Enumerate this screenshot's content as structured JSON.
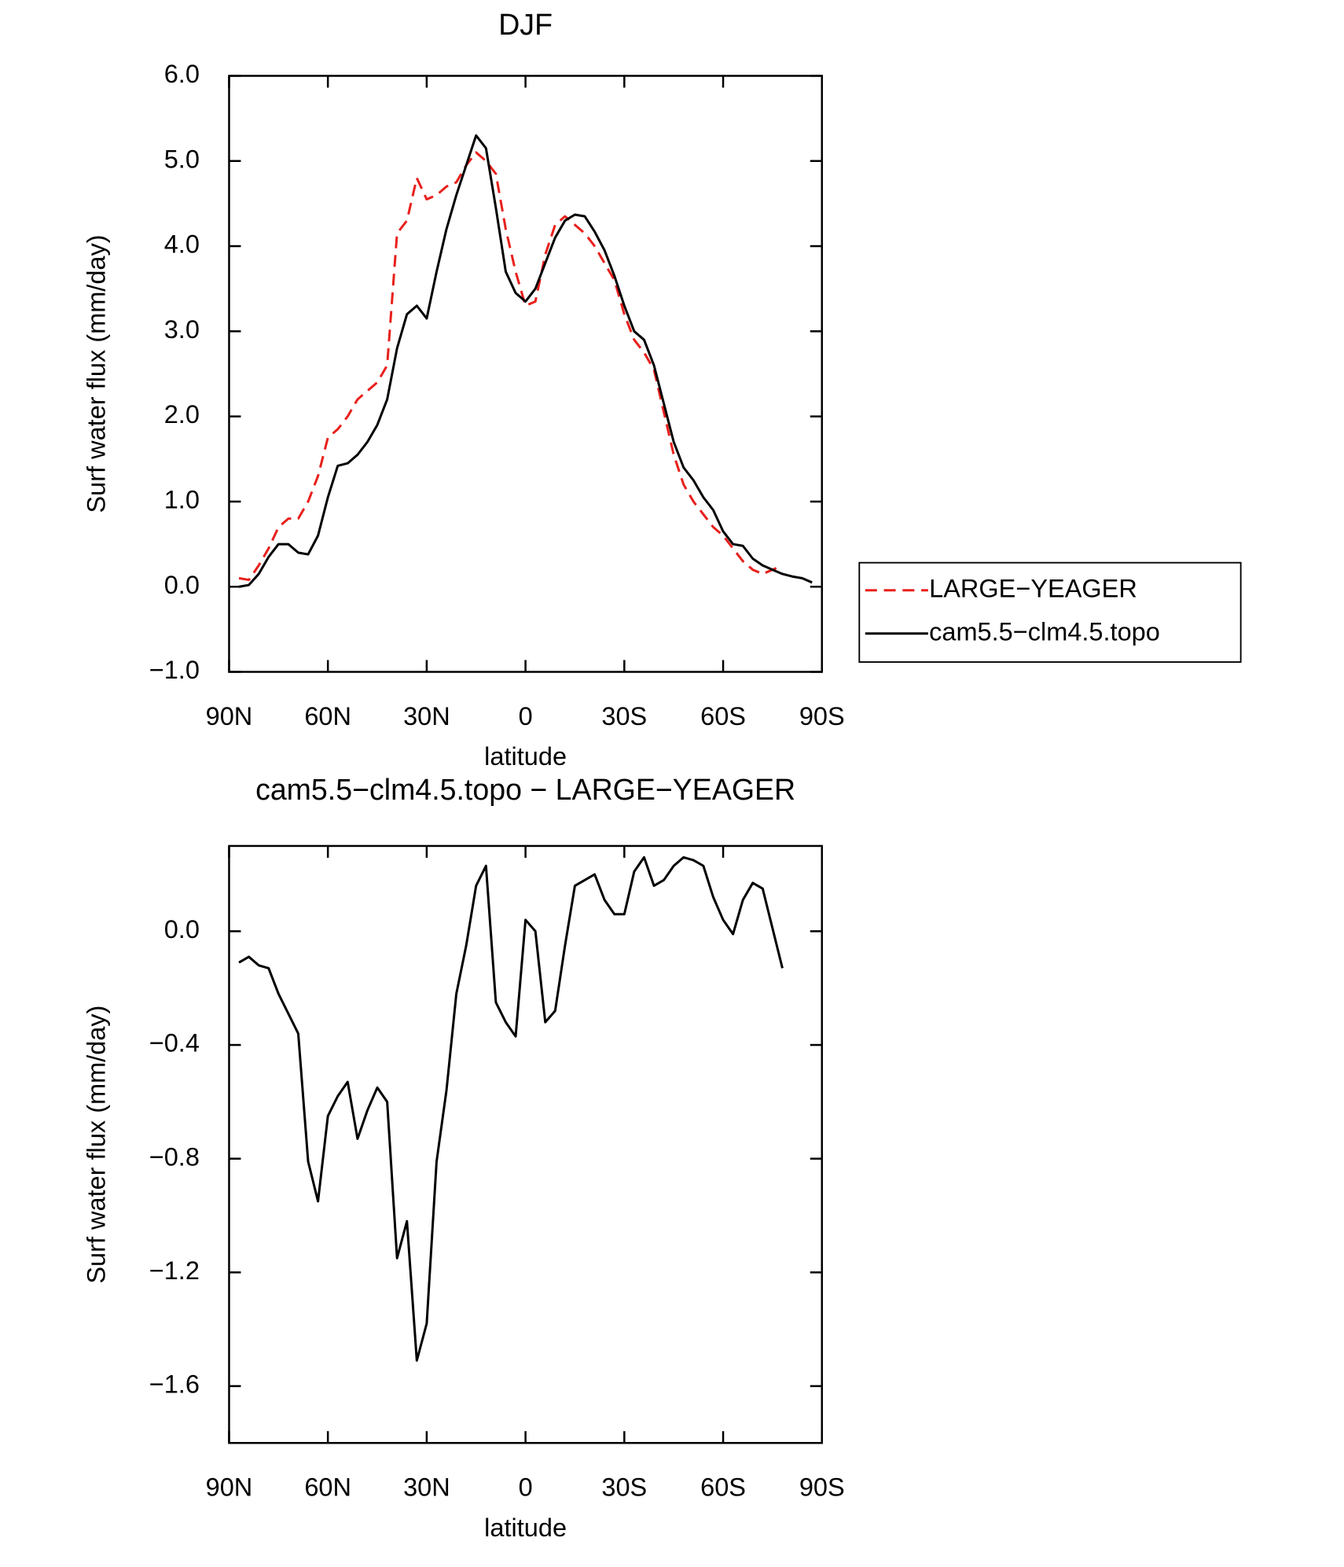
{
  "chart_data": [
    {
      "type": "line",
      "title": "DJF",
      "xlabel": "latitude",
      "ylabel": "Surf water flux (mm/day)",
      "x": [
        87,
        84,
        81,
        78,
        75,
        72,
        69,
        66,
        63,
        60,
        57,
        54,
        51,
        48,
        45,
        42,
        39,
        36,
        33,
        30,
        27,
        24,
        21,
        18,
        15,
        12,
        9,
        6,
        3,
        0,
        -3,
        -6,
        -9,
        -12,
        -15,
        -18,
        -21,
        -24,
        -27,
        -30,
        -33,
        -36,
        -39,
        -42,
        -45,
        -48,
        -51,
        -54,
        -57,
        -60,
        -63,
        -66,
        -69,
        -72,
        -75,
        -78,
        -81,
        -84,
        -87
      ],
      "xlim": [
        90,
        -90
      ],
      "xticks": [
        {
          "value": 90,
          "label": "90N"
        },
        {
          "value": 60,
          "label": "60N"
        },
        {
          "value": 30,
          "label": "30N"
        },
        0,
        {
          "value": -30,
          "label": "30S"
        },
        {
          "value": -60,
          "label": "60S"
        },
        {
          "value": -90,
          "label": "90S"
        }
      ],
      "ylim": [
        -1,
        6
      ],
      "yticks": [
        {
          "value": 6,
          "label": "6.0"
        },
        {
          "value": 5,
          "label": "5.0"
        },
        {
          "value": 4,
          "label": "4.0"
        },
        {
          "value": 3,
          "label": "3.0"
        },
        {
          "value": 2,
          "label": "2.0"
        },
        {
          "value": 1,
          "label": "1.0"
        },
        {
          "value": 0,
          "label": "0.0"
        },
        {
          "value": -1,
          "label": "−1.0"
        }
      ],
      "legend": "right",
      "series": [
        {
          "name": "LARGE−YEAGER",
          "color": "#e8201c",
          "dash": true,
          "values": [
            0.1,
            0.08,
            0.25,
            0.45,
            0.7,
            0.8,
            0.8,
            1.0,
            1.3,
            1.75,
            1.85,
            2.0,
            2.2,
            2.3,
            2.4,
            2.6,
            4.15,
            4.3,
            4.8,
            4.55,
            4.6,
            4.7,
            4.75,
            4.95,
            5.1,
            5.0,
            4.85,
            4.2,
            3.7,
            3.3,
            3.35,
            3.9,
            4.25,
            4.35,
            4.25,
            4.15,
            4.0,
            3.8,
            3.6,
            3.2,
            2.9,
            2.75,
            2.55,
            2.05,
            1.55,
            1.2,
            1.0,
            0.85,
            0.7,
            0.6,
            0.45,
            0.3,
            0.2,
            0.15,
            0.2,
            0.25,
            null,
            null,
            null
          ]
        },
        {
          "name": "cam5.5−clm4.5.topo",
          "color": "#000000",
          "dash": false,
          "values": [
            0.0,
            0.02,
            0.15,
            0.35,
            0.5,
            0.5,
            0.4,
            0.38,
            0.6,
            1.05,
            1.42,
            1.45,
            1.55,
            1.7,
            1.9,
            2.2,
            2.8,
            3.2,
            3.3,
            3.15,
            3.7,
            4.2,
            4.6,
            4.95,
            5.3,
            5.15,
            4.45,
            3.7,
            3.45,
            3.35,
            3.5,
            3.8,
            4.1,
            4.3,
            4.37,
            4.35,
            4.17,
            3.95,
            3.65,
            3.3,
            3.0,
            2.9,
            2.6,
            2.15,
            1.7,
            1.4,
            1.25,
            1.05,
            0.9,
            0.65,
            0.5,
            0.48,
            0.33,
            0.25,
            0.2,
            0.15,
            0.12,
            0.1,
            0.05
          ]
        }
      ]
    },
    {
      "type": "line",
      "title": "cam5.5−clm4.5.topo − LARGE−YEAGER",
      "xlabel": "latitude",
      "ylabel": "Surf water flux (mm/day)",
      "x": [
        87,
        84,
        81,
        78,
        75,
        72,
        69,
        66,
        63,
        60,
        57,
        54,
        51,
        48,
        45,
        42,
        39,
        36,
        33,
        30,
        27,
        24,
        21,
        18,
        15,
        12,
        9,
        6,
        3,
        0,
        -3,
        -6,
        -9,
        -12,
        -15,
        -18,
        -21,
        -24,
        -27,
        -30,
        -33,
        -36,
        -39,
        -42,
        -45,
        -48,
        -51,
        -54,
        -57,
        -60,
        -63,
        -66,
        -69,
        -72,
        -75,
        -78
      ],
      "xlim": [
        90,
        -90
      ],
      "xticks": [
        {
          "value": 90,
          "label": "90N"
        },
        {
          "value": 60,
          "label": "60N"
        },
        {
          "value": 30,
          "label": "30N"
        },
        0,
        {
          "value": -30,
          "label": "30S"
        },
        {
          "value": -60,
          "label": "60S"
        },
        {
          "value": -90,
          "label": "90S"
        }
      ],
      "ylim": [
        -1.8,
        0.3
      ],
      "yticks": [
        {
          "value": 0,
          "label": "0.0"
        },
        {
          "value": -0.4,
          "label": "−0.4"
        },
        {
          "value": -0.8,
          "label": "−0.8"
        },
        {
          "value": -1.2,
          "label": "−1.2"
        },
        {
          "value": -1.6,
          "label": "−1.6"
        }
      ],
      "series": [
        {
          "color": "#000000",
          "dash": false,
          "values": [
            -0.11,
            -0.09,
            -0.12,
            -0.13,
            -0.22,
            -0.29,
            -0.36,
            -0.81,
            -0.95,
            -0.65,
            -0.58,
            -0.53,
            -0.73,
            -0.63,
            -0.55,
            -0.6,
            -1.15,
            -1.02,
            -1.51,
            -1.38,
            -0.81,
            -0.56,
            -0.22,
            -0.05,
            0.16,
            0.23,
            -0.25,
            -0.32,
            -0.37,
            0.04,
            0.0,
            -0.32,
            -0.28,
            -0.05,
            0.16,
            0.18,
            0.2,
            0.11,
            0.06,
            0.06,
            0.21,
            0.26,
            0.16,
            0.18,
            0.23,
            0.26,
            0.25,
            0.23,
            0.12,
            0.04,
            -0.01,
            0.11,
            0.17,
            0.15,
            0.01,
            -0.13
          ]
        }
      ]
    }
  ]
}
